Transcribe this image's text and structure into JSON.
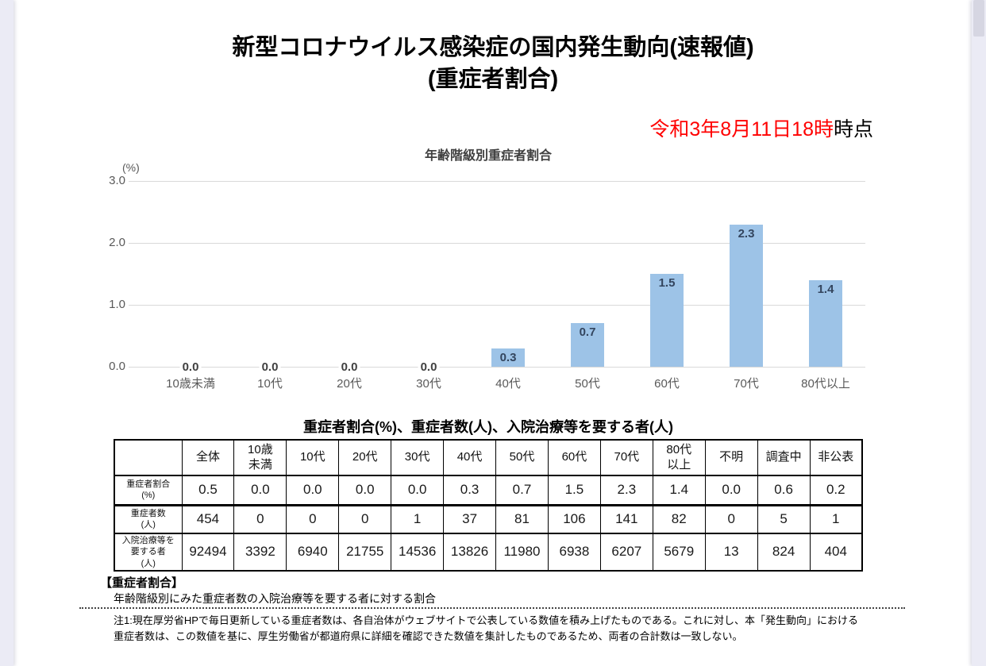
{
  "page": {
    "title_line1": "新型コロナウイルス感染症の国内発生動向(速報値)",
    "title_line2": "(重症者割合)",
    "date_red": "令和3年8月11日18時",
    "date_black": "時点"
  },
  "chart_data": {
    "type": "bar",
    "title": "年齢階級別重症者割合",
    "unit_label": "(%)",
    "categories": [
      "10歳未満",
      "10代",
      "20代",
      "30代",
      "40代",
      "50代",
      "60代",
      "70代",
      "80代以上"
    ],
    "values": [
      0.0,
      0.0,
      0.0,
      0.0,
      0.3,
      0.7,
      1.5,
      2.3,
      1.4
    ],
    "value_labels": [
      "0.0",
      "0.0",
      "0.0",
      "0.0",
      "0.3",
      "0.7",
      "1.5",
      "2.3",
      "1.4"
    ],
    "ylabel": "(%)",
    "ylim": [
      0,
      3
    ],
    "yticks": [
      {
        "value": 3,
        "label": "3.0"
      },
      {
        "value": 2,
        "label": "2.0"
      },
      {
        "value": 1,
        "label": "1.0"
      },
      {
        "value": 0,
        "label": "0.0"
      }
    ],
    "grid": true,
    "legend": "none",
    "bar_color": "#9dc3e7"
  },
  "table": {
    "title": "重症者割合(%)、重症者数(人)、入院治療等を要する者(人)",
    "columns": [
      "",
      "全体",
      "10歳\n未満",
      "10代",
      "20代",
      "30代",
      "40代",
      "50代",
      "60代",
      "70代",
      "80代\n以上",
      "不明",
      "調査中",
      "非公表"
    ],
    "rows": [
      {
        "label": "重症者割合\n(%)",
        "values": [
          "0.5",
          "0.0",
          "0.0",
          "0.0",
          "0.0",
          "0.3",
          "0.7",
          "1.5",
          "2.3",
          "1.4",
          "0.0",
          "0.6",
          "0.2"
        ]
      },
      {
        "label": "重症者数\n(人)",
        "values": [
          "454",
          "0",
          "0",
          "0",
          "1",
          "37",
          "81",
          "106",
          "141",
          "82",
          "0",
          "5",
          "1"
        ]
      },
      {
        "label": "入院治療等を\n要する者\n(人)",
        "values": [
          "92494",
          "3392",
          "6940",
          "21755",
          "14536",
          "13826",
          "11980",
          "6938",
          "6207",
          "5679",
          "13",
          "824",
          "404"
        ]
      }
    ]
  },
  "footer": {
    "legend_heading": "【重症者割合】",
    "legend_description": "年齢階級別にみた重症者数の入院治療等を要する者に対する割合",
    "note_line1": "注1:現在厚労省HPで毎日更新している重症者数は、各自治体がウェブサイトで公表している数値を積み上げたものである。これに対し、本「発生動向」における",
    "note_line2": "重症者数は、この数値を基に、厚生労働省が都道府県に詳細を確認できた数値を集計したものであるため、両者の合計数は一致しない。"
  }
}
